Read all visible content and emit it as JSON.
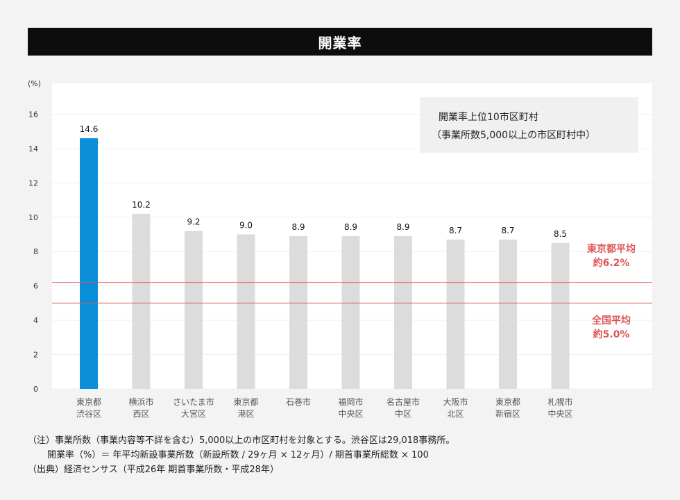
{
  "title": "開業率",
  "chart_data": {
    "type": "bar",
    "unit_label": "(%)",
    "categories": [
      [
        "東京都",
        "渋谷区"
      ],
      [
        "横浜市",
        "西区"
      ],
      [
        "さいたま市",
        "大宮区"
      ],
      [
        "東京都",
        "港区"
      ],
      [
        "石巻市"
      ],
      [
        "福岡市",
        "中央区"
      ],
      [
        "名古屋市",
        "中区"
      ],
      [
        "大阪市",
        "北区"
      ],
      [
        "東京都",
        "新宿区"
      ],
      [
        "札幌市",
        "中央区"
      ]
    ],
    "values": [
      14.6,
      10.2,
      9.2,
      9.0,
      8.9,
      8.9,
      8.9,
      8.7,
      8.7,
      8.5
    ],
    "value_labels": [
      "14.6",
      "10.2",
      "9.2",
      "9.0",
      "8.9",
      "8.9",
      "8.9",
      "8.7",
      "8.7",
      "8.5"
    ],
    "yticks": [
      "0",
      "2",
      "4",
      "6",
      "8",
      "10",
      "12",
      "14",
      "16"
    ],
    "ylim": [
      0,
      17.8
    ],
    "highlight_color": "#0a8fd8",
    "bar_color": "#dcdcdc",
    "reference_lines": [
      {
        "value": 6.2,
        "label": [
          "東京都平均",
          "約6.2%"
        ],
        "color": "#e05555"
      },
      {
        "value": 5.0,
        "label": [
          "全国平均",
          "約5.0%"
        ],
        "color": "#e05555"
      }
    ],
    "legend_box": {
      "line1": "開業率上位10市区町村",
      "line2": "（事業所数5,000以上の市区町村中）"
    }
  },
  "notes": {
    "line1": "（注）事業所数（事業内容等不詳を含む）5,000以上の市区町村を対象とする。渋谷区は29,018事務所。",
    "line2": "開業率（%）＝ 年平均新設事業所数（新設所数 / 29ヶ月 × 12ヶ月）/ 期首事業所総数 × 100",
    "line3": "（出典）経済センサス（平成26年 期首事業所数・平成28年）"
  }
}
